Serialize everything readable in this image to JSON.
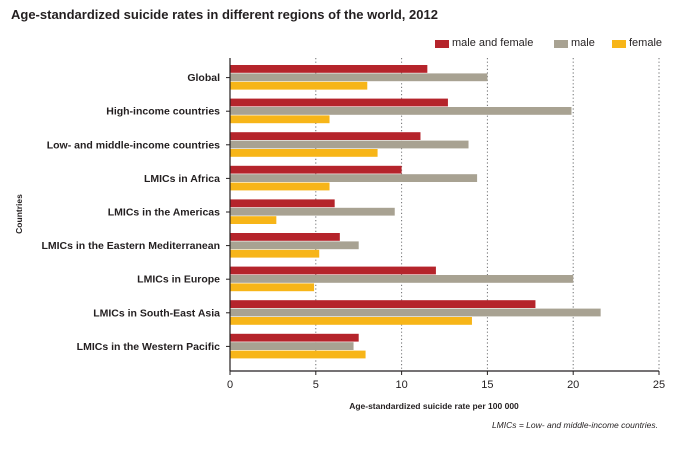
{
  "chart_data": {
    "type": "bar",
    "orientation": "horizontal",
    "title": "Age-standardized suicide rates in different regions of the world, 2012",
    "xlabel": "Age-standardized suicide rate per 100 000",
    "ylabel": "Countries",
    "xlim": [
      0,
      25
    ],
    "xticks": [
      "0",
      "5",
      "10",
      "15",
      "20",
      "25"
    ],
    "grid": "vertical dotted",
    "legend_position": "top-right",
    "categories": [
      "Global",
      "High-income countries",
      "Low- and middle-income countries",
      "LMICs in Africa",
      "LMICs in the Americas",
      "LMICs in the Eastern Mediterranean",
      "LMICs in Europe",
      "LMICs in South-East Asia",
      "LMICs in the Western Pacific"
    ],
    "series": [
      {
        "name": "male and female",
        "color": "#b5242b",
        "values": [
          11.5,
          12.7,
          11.1,
          10.0,
          6.1,
          6.4,
          12.0,
          17.8,
          7.5
        ]
      },
      {
        "name": "male",
        "color": "#a8a292",
        "values": [
          15.0,
          19.9,
          13.9,
          14.4,
          9.6,
          7.5,
          20.0,
          21.6,
          7.2
        ]
      },
      {
        "name": "female",
        "color": "#f7b518",
        "values": [
          8.0,
          5.8,
          8.6,
          5.8,
          2.7,
          5.2,
          4.9,
          14.1,
          7.9
        ]
      }
    ],
    "footnote": "LMICs = Low- and middle-income countries."
  },
  "colors": {
    "axis": "#231f20",
    "grid": "#6d6e70",
    "background": "#ffffff"
  }
}
